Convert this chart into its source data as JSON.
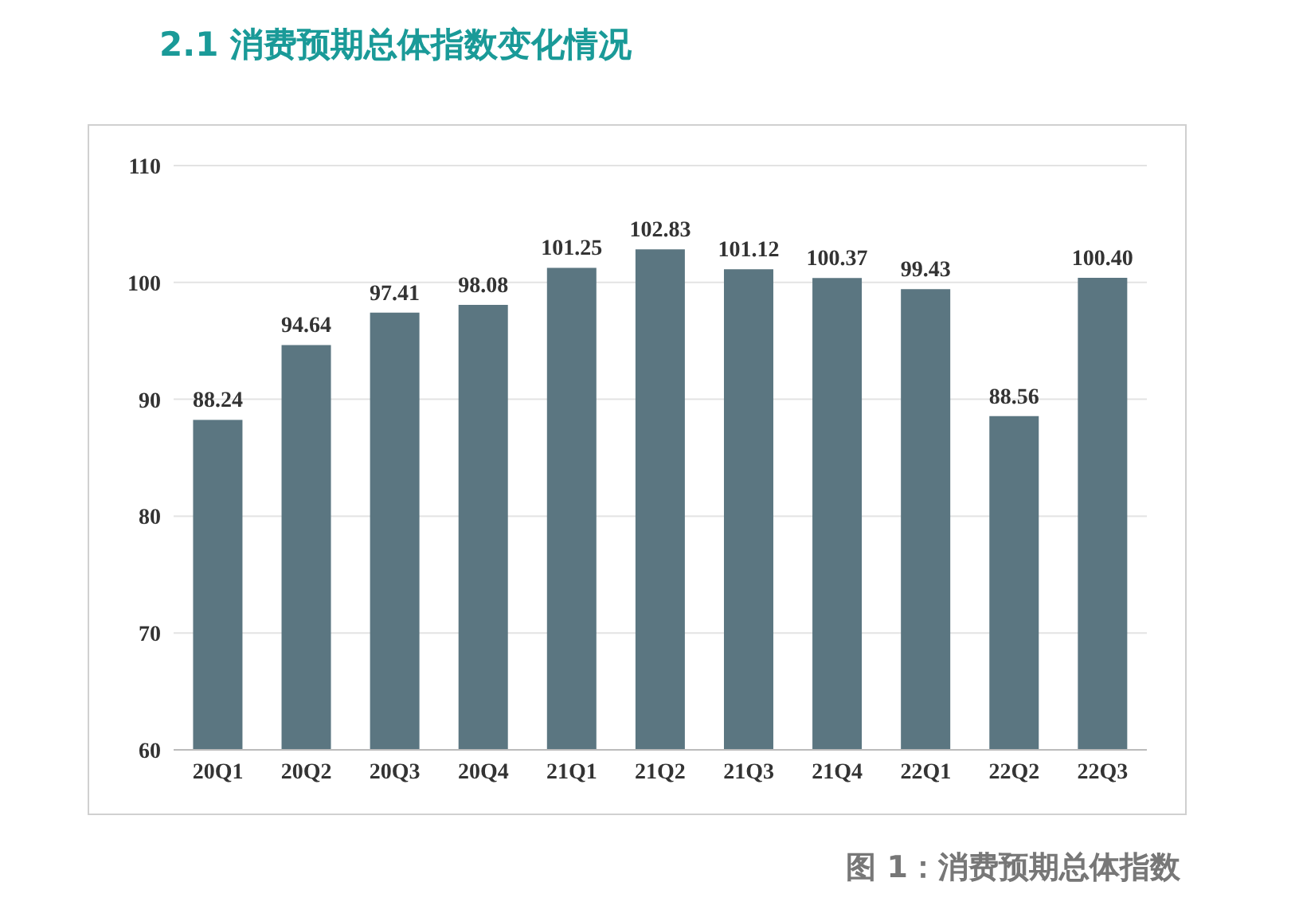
{
  "chart_data": {
    "type": "bar",
    "title": "2.1  消费预期总体指数变化情况",
    "annotations": [
      "图 1：消费预期总体指数"
    ],
    "categories": [
      "20Q1",
      "20Q2",
      "20Q3",
      "20Q4",
      "21Q1",
      "21Q2",
      "21Q3",
      "21Q4",
      "22Q1",
      "22Q2",
      "22Q3"
    ],
    "values": [
      88.24,
      94.64,
      97.41,
      98.08,
      101.25,
      102.83,
      101.12,
      100.37,
      99.43,
      88.56,
      100.4
    ],
    "value_labels": [
      "88.24",
      "94.64",
      "97.41",
      "98.08",
      "101.25",
      "102.83",
      "101.12",
      "100.37",
      "99.43",
      "88.56",
      "100.40"
    ],
    "color": "#5b7681",
    "ylim": [
      60,
      110
    ],
    "yticks": [
      60,
      70,
      80,
      90,
      100,
      110
    ],
    "grid": "y"
  }
}
